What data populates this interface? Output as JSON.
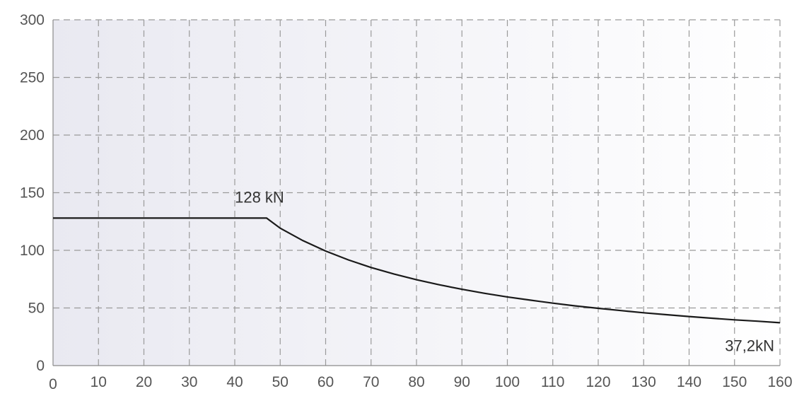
{
  "chart_data": {
    "type": "line",
    "title": "",
    "xlabel": "",
    "ylabel": "",
    "xlim": [
      0,
      160
    ],
    "ylim": [
      0,
      300
    ],
    "x_ticks": [
      "0",
      "10",
      "20",
      "30",
      "40",
      "50",
      "60",
      "70",
      "80",
      "90",
      "100",
      "110",
      "120",
      "130",
      "140",
      "150",
      "160"
    ],
    "y_ticks": [
      "0",
      "50",
      "100",
      "150",
      "200",
      "250",
      "300"
    ],
    "grid": true,
    "series": [
      {
        "x": [
          0,
          47,
          50,
          55,
          60,
          65,
          70,
          75,
          80,
          85,
          90,
          95,
          100,
          105,
          110,
          115,
          120,
          125,
          130,
          135,
          140,
          145,
          150,
          155,
          160
        ],
        "y": [
          128,
          128,
          119.2,
          108.4,
          99.4,
          91.7,
          85.1,
          79.5,
          74.5,
          70.1,
          66.2,
          62.7,
          59.6,
          56.8,
          54.2,
          51.8,
          49.7,
          47.7,
          45.8,
          44.2,
          42.6,
          41.1,
          39.7,
          38.5,
          37.2
        ]
      }
    ],
    "annotations": [
      {
        "text": "128 kN",
        "x": 47,
        "y": 128
      },
      {
        "text": "37,2kN",
        "x": 160,
        "y": 37.2
      }
    ]
  }
}
